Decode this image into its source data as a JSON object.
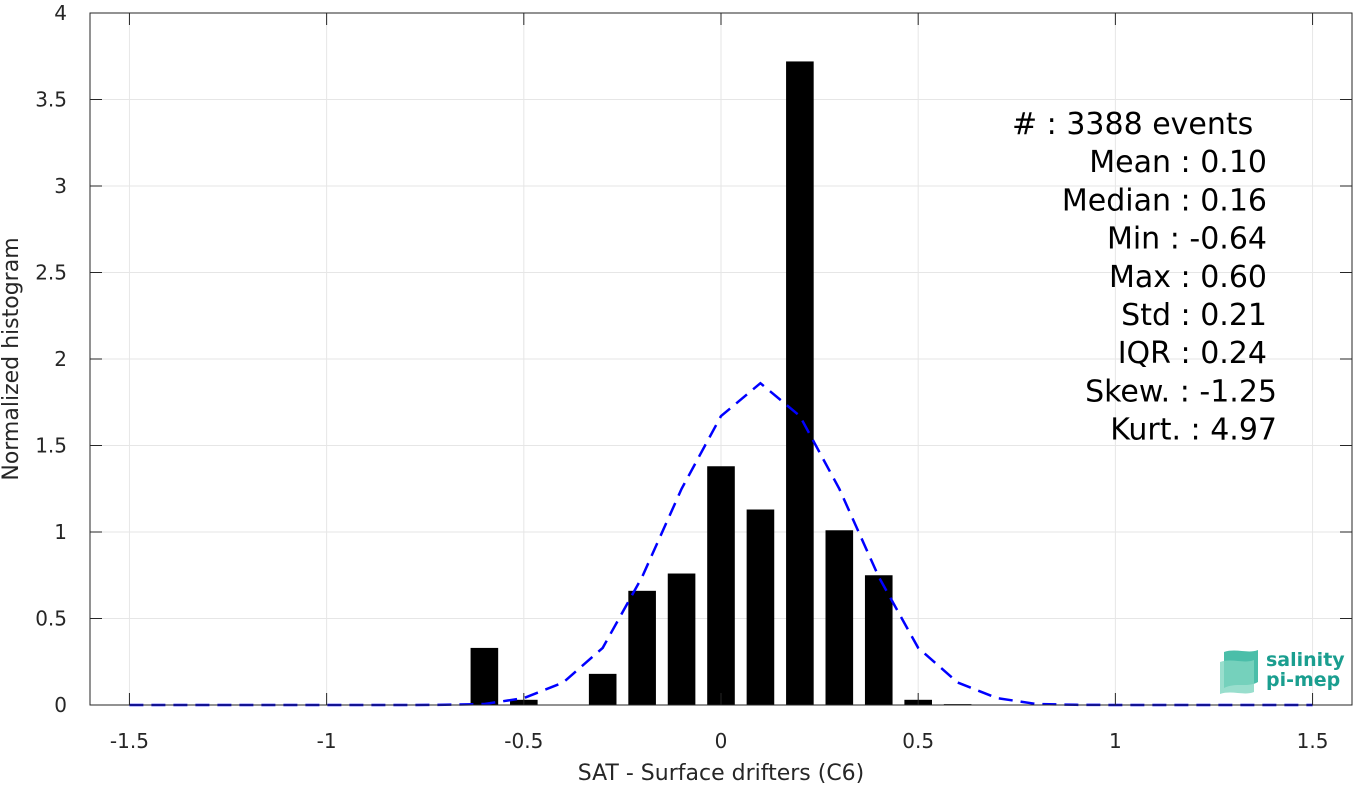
{
  "chart_data": {
    "type": "bar",
    "xlabel": "SAT - Surface drifters (C6)",
    "ylabel": "Normalized histogram",
    "xlim": [
      -1.6,
      1.6
    ],
    "ylim": [
      0,
      4
    ],
    "xticks": [
      -1.5,
      -1,
      -0.5,
      0,
      0.5,
      1,
      1.5
    ],
    "xtick_labels": [
      "-1.5",
      "-1",
      "-0.5",
      "0",
      "0.5",
      "1",
      "1.5"
    ],
    "yticks": [
      0,
      0.5,
      1,
      1.5,
      2,
      2.5,
      3,
      3.5,
      4
    ],
    "ytick_labels": [
      "0",
      "0.5",
      "1",
      "1.5",
      "2",
      "2.5",
      "3",
      "3.5",
      "4"
    ],
    "grid": true,
    "bar_color": "#000000",
    "bars": {
      "x": [
        -0.6,
        -0.5,
        -0.3,
        -0.2,
        -0.1,
        0.0,
        0.1,
        0.2,
        0.3,
        0.4,
        0.5,
        0.6
      ],
      "values": [
        0.33,
        0.03,
        0.18,
        0.66,
        0.76,
        1.38,
        1.13,
        3.72,
        1.01,
        0.75,
        0.03,
        0.005
      ]
    },
    "fit_curve": {
      "style": "dashed",
      "color": "#0000ff",
      "x": [
        -1.5,
        -1.4,
        -1.3,
        -1.2,
        -1.1,
        -1.0,
        -0.9,
        -0.8,
        -0.7,
        -0.6,
        -0.5,
        -0.4,
        -0.3,
        -0.2,
        -0.1,
        0.0,
        0.1,
        0.2,
        0.3,
        0.4,
        0.5,
        0.6,
        0.7,
        0.8,
        0.9,
        1.0,
        1.1,
        1.2,
        1.3,
        1.4,
        1.5
      ],
      "y": [
        0,
        0,
        0,
        0,
        0,
        0,
        0,
        0,
        0.001,
        0.006,
        0.04,
        0.13,
        0.33,
        0.74,
        1.25,
        1.67,
        1.86,
        1.67,
        1.25,
        0.74,
        0.33,
        0.13,
        0.04,
        0.006,
        0.001,
        0,
        0,
        0,
        0,
        0,
        0
      ]
    },
    "stats": [
      {
        "label": "#  : 3388 events",
        "anchor": "start"
      },
      {
        "label": "Mean : 0.10",
        "anchor": "end"
      },
      {
        "label": "Median : 0.16",
        "anchor": "end"
      },
      {
        "label": "Min : -0.64",
        "anchor": "end"
      },
      {
        "label": "Max : 0.60",
        "anchor": "end"
      },
      {
        "label": "Std : 0.21",
        "anchor": "end"
      },
      {
        "label": "IQR : 0.24",
        "anchor": "end"
      },
      {
        "label": "Skew. : -1.25",
        "anchor": "end"
      },
      {
        "label": "Kurt. : 4.97",
        "anchor": "end"
      }
    ],
    "logo": {
      "line1": "salinity",
      "line2": "pi-mep",
      "color": "#1a9e8f"
    }
  }
}
